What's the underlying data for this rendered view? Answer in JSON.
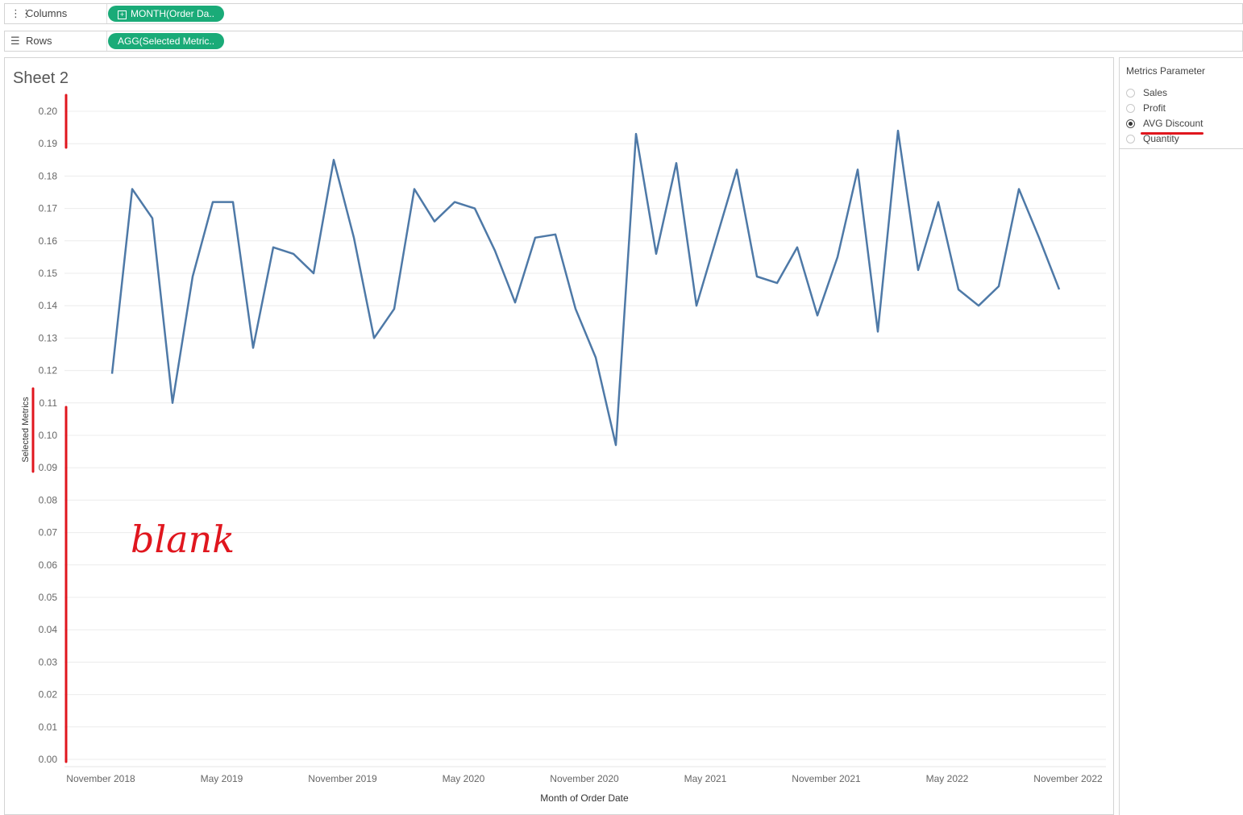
{
  "shelves": {
    "columns": {
      "label": "Columns",
      "icon": "columns-icon",
      "pill": "MONTH(Order Da.."
    },
    "rows": {
      "label": "Rows",
      "icon": "rows-icon",
      "pill": "AGG(Selected Metric.."
    }
  },
  "sheet_title": "Sheet 2",
  "parameter": {
    "title": "Metrics Parameter",
    "options": [
      "Sales",
      "Profit",
      "AVG Discount",
      "Quantity"
    ],
    "selected": "AVG Discount"
  },
  "annotation": {
    "text": "blank",
    "color": "#e0161e"
  },
  "colors": {
    "line": "#4e79a7",
    "pill": "#1aab78",
    "annotation": "#e0161e"
  },
  "chart_data": {
    "type": "line",
    "title": "Sheet 2",
    "xlabel": "Month of Order Date",
    "ylabel": "Selected Metrics",
    "ylim": [
      0,
      0.2
    ],
    "yticks": [
      "0.00",
      "0.01",
      "0.02",
      "0.03",
      "0.04",
      "0.05",
      "0.06",
      "0.07",
      "0.08",
      "0.09",
      "0.10",
      "0.11",
      "0.12",
      "0.13",
      "0.14",
      "0.15",
      "0.16",
      "0.17",
      "0.18",
      "0.19",
      "0.20"
    ],
    "xticks": [
      "November 2018",
      "May 2019",
      "November 2019",
      "May 2020",
      "November 2020",
      "May 2021",
      "November 2021",
      "May 2022",
      "November 2022"
    ],
    "x_start": "2018-11",
    "x_end": "2022-12",
    "grid": true,
    "series": [
      {
        "values": [
          0.119,
          0.176,
          0.167,
          0.11,
          0.149,
          0.172,
          0.172,
          0.127,
          0.158,
          0.156,
          0.15,
          0.185,
          0.161,
          0.13,
          0.139,
          0.176,
          0.166,
          0.172,
          0.17,
          0.157,
          0.141,
          0.161,
          0.162,
          0.139,
          0.124,
          0.097,
          0.193,
          0.156,
          0.184,
          0.14,
          0.161,
          0.182,
          0.149,
          0.147,
          0.158,
          0.137,
          0.155,
          0.182,
          0.132,
          0.194,
          0.151,
          0.172,
          0.145,
          0.14,
          0.146,
          0.176,
          0.161,
          0.145
        ]
      }
    ]
  }
}
